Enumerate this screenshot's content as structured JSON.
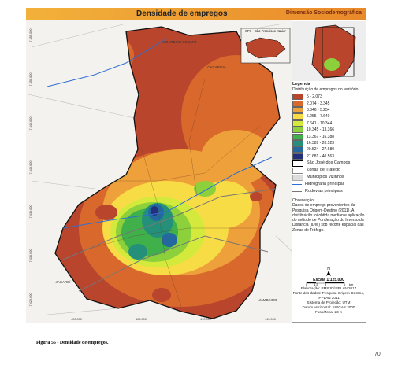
{
  "header": {
    "title": "Densidade de empregos",
    "subtitle": "Dimensão Sociodemográfica"
  },
  "inset": {
    "label": "SFX - São Francisco Xavier"
  },
  "map_labels": [
    "MONTEIRO LOBATO",
    "CAÇAPAVA",
    "JACAREÍ",
    "JAMBEIRO"
  ],
  "axes": {
    "left": [
      "7.455.000",
      "7.450.000",
      "7.445.000",
      "7.440.000",
      "7.435.000",
      "7.430.000",
      "7.425.000"
    ],
    "bottom": [
      "400.000",
      "405.000",
      "410.000",
      "415.000",
      "420.000"
    ]
  },
  "legend": {
    "title": "Legenda",
    "subtitle": "Distribuição de empregos no território",
    "classes": [
      {
        "label": "5 - 2.073",
        "color": "#b8452c"
      },
      {
        "label": "2.074 - 3.345",
        "color": "#d9682c"
      },
      {
        "label": "3.346 - 5.254",
        "color": "#eea03a"
      },
      {
        "label": "5.255 - 7.640",
        "color": "#f7dc45"
      },
      {
        "label": "7.641 - 10.344",
        "color": "#d3ea3c"
      },
      {
        "label": "10.345 - 13.366",
        "color": "#8cd03c"
      },
      {
        "label": "13.367 - 16.388",
        "color": "#3fb04a"
      },
      {
        "label": "16.389 - 20.523",
        "color": "#24907a"
      },
      {
        "label": "20.524 - 27.680",
        "color": "#2468a0"
      },
      {
        "label": "27.681 - 40.563",
        "color": "#23307e"
      }
    ],
    "items": [
      "São José dos Campos",
      "Zonas de Tráfego",
      "Municípios vizinhos",
      "Hidrografia principal",
      "Rodovias principais"
    ]
  },
  "observation": {
    "title": "Observação:",
    "text": "Dados de emprego provenientes da Pesquisa Origem-Destino (2011). A distribuição foi obtida mediante aplicação do método de Ponderação do Inverso da Distância (IDW) sob recorte espacial das Zonas de Tráfego."
  },
  "north": "N",
  "scale": {
    "title": "Escala 1:125.000",
    "ticks": [
      "0",
      "1,5",
      "3",
      "6"
    ],
    "unit": "km"
  },
  "credits": [
    "Elaboração: PMSJC/IPPLAN 2017",
    "Fonte dos dados: Pesquisa Origem-Destino, IPPLAN 2011",
    "Sistema de Projeção: UTM",
    "Datum Horizontal: SIRGAS 2000",
    "Fuso/Zona: 23 K"
  ],
  "caption": "Figura 55 - Densidade de empregos.",
  "page_number": "70"
}
